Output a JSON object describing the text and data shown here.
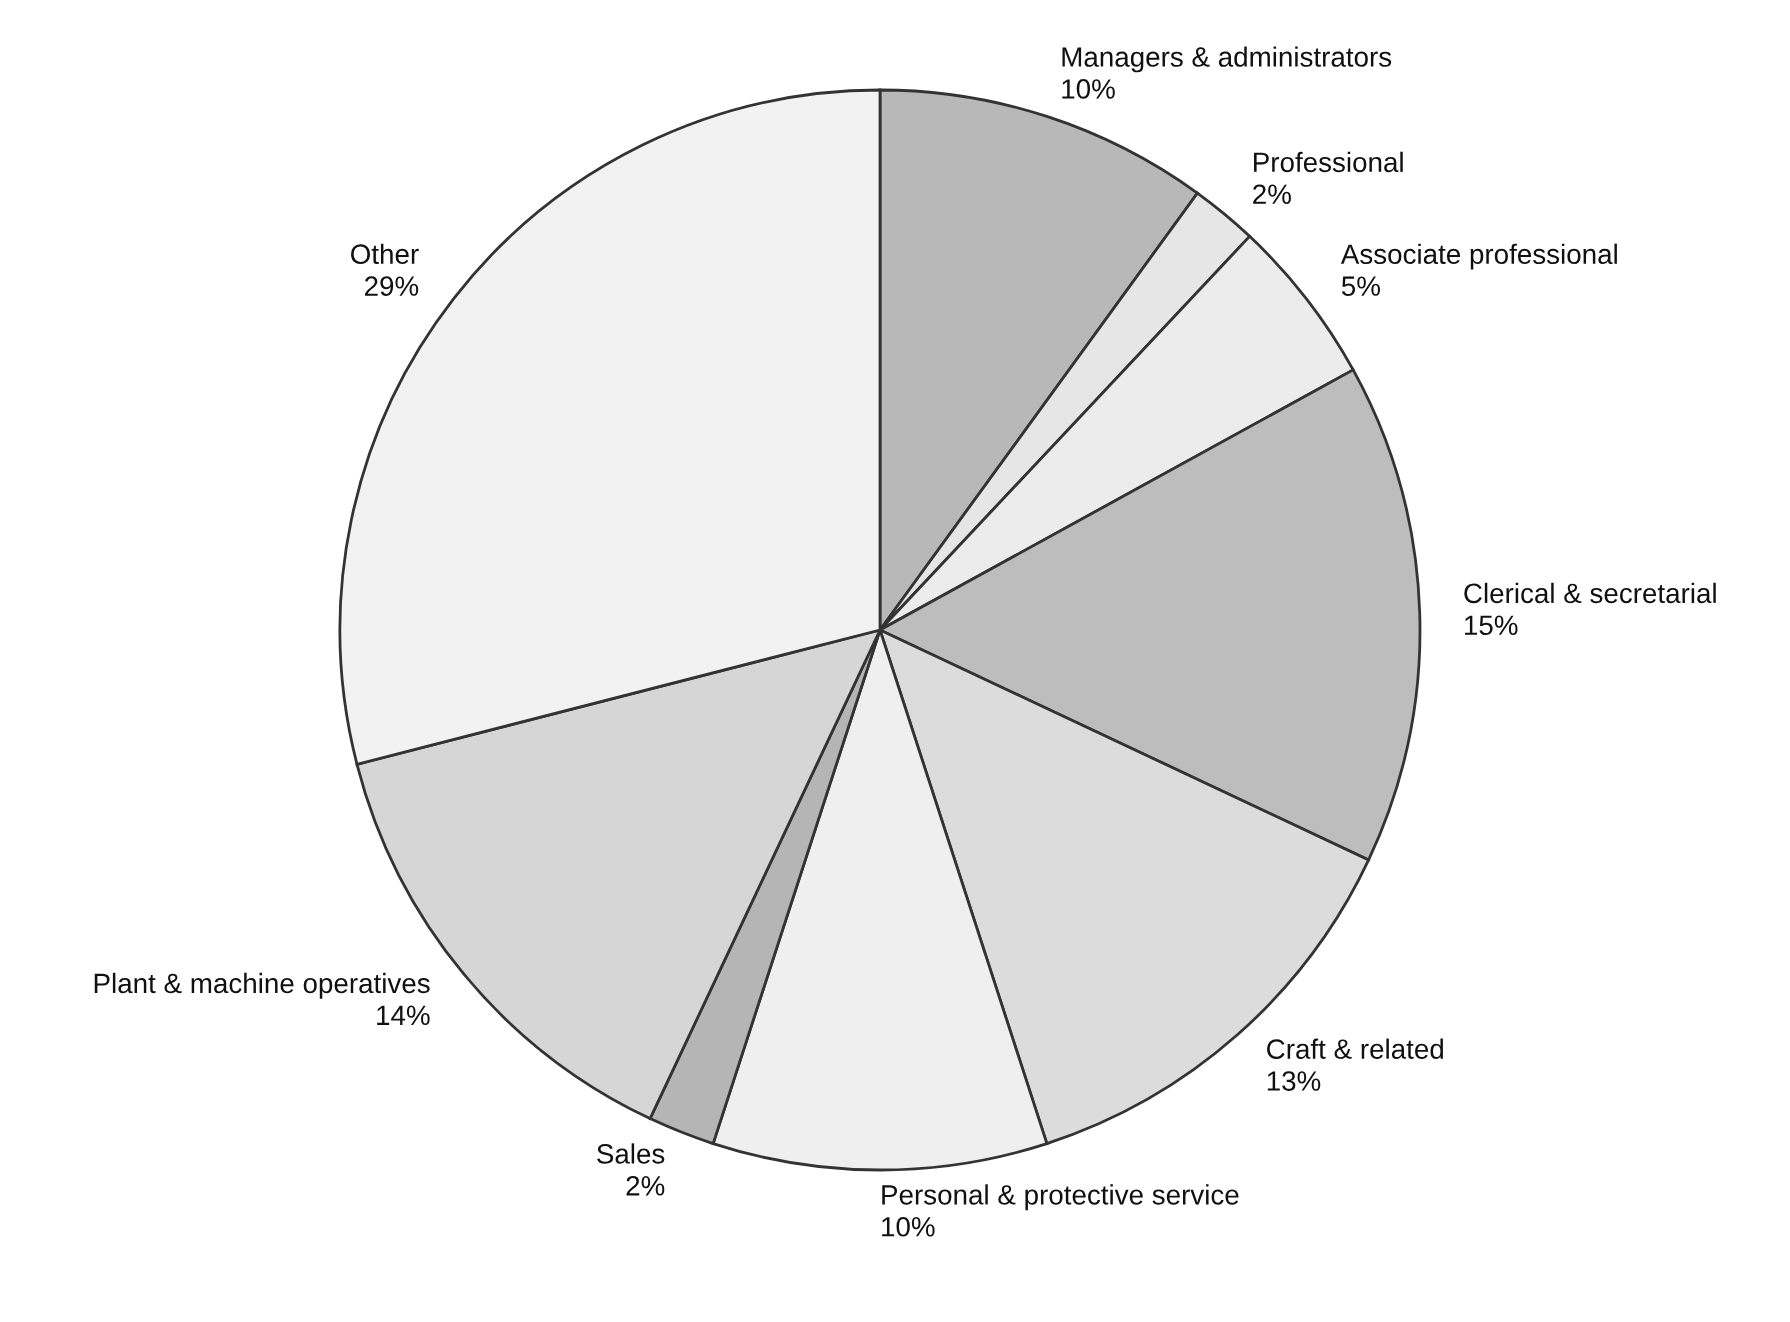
{
  "chart_data": {
    "type": "pie",
    "categories": [
      "Managers & administrators",
      "Professional",
      "Associate professional",
      "Clerical & secretarial",
      "Craft & related",
      "Personal & protective service",
      "Sales",
      "Plant & machine operatives",
      "Other"
    ],
    "values": [
      10,
      2,
      5,
      15,
      13,
      10,
      2,
      14,
      29
    ],
    "value_labels": [
      "10%",
      "2%",
      "5%",
      "15%",
      "13%",
      "10%",
      "2%",
      "14%",
      "29%"
    ],
    "colors": [
      "#b8b8b8",
      "#e6e6e6",
      "#ececec",
      "#bdbdbd",
      "#dcdcdc",
      "#efefef",
      "#b5b5b5",
      "#d6d6d6",
      "#f2f2f2"
    ]
  }
}
